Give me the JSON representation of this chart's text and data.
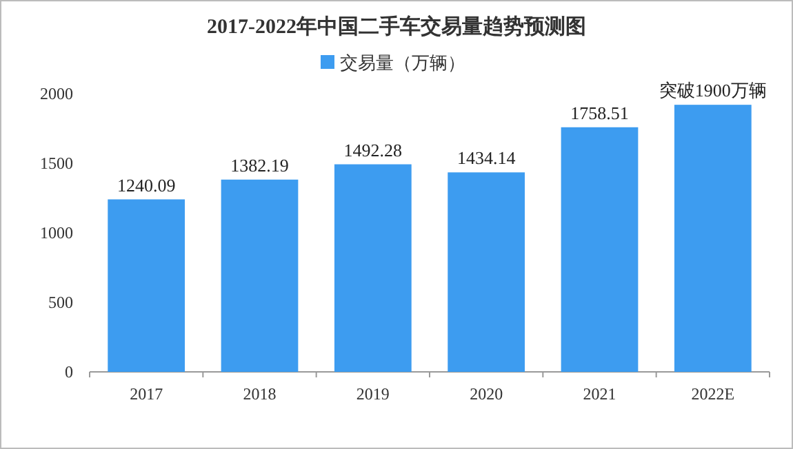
{
  "chart_data": {
    "type": "bar",
    "title": "2017-2022年中国二手车交易量趋势预测图",
    "categories": [
      "2017",
      "2018",
      "2019",
      "2020",
      "2021",
      "2022E"
    ],
    "series": [
      {
        "name": "交易量（万辆）",
        "color": "#3d9cf0",
        "values": [
          1240.09,
          1382.19,
          1492.28,
          1434.14,
          1758.51,
          1920
        ],
        "value_labels": [
          "1240.09",
          "1382.19",
          "1492.28",
          "1434.14",
          "1758.51",
          "突破1900万辆"
        ]
      }
    ],
    "ylim": [
      0,
      2000
    ],
    "yticks": [
      0,
      500,
      1000,
      1500,
      2000
    ],
    "legend": "top"
  }
}
